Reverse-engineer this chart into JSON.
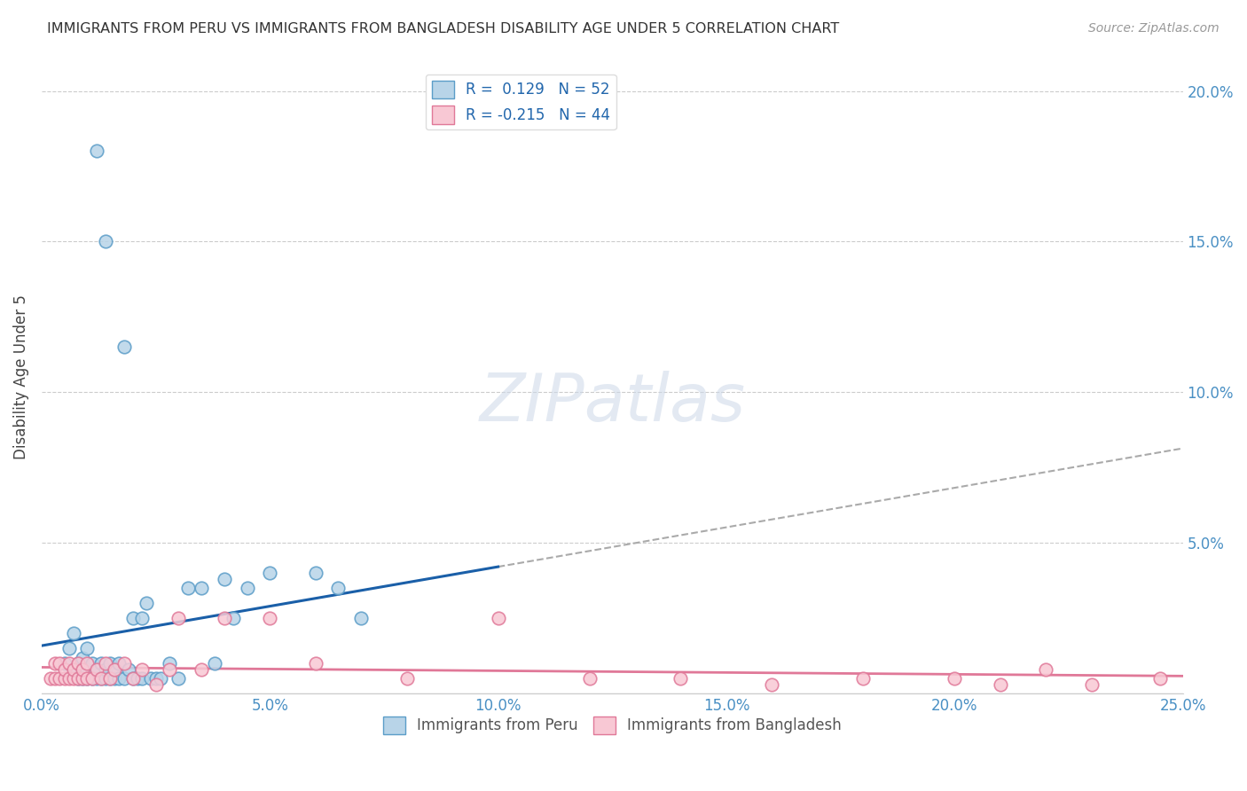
{
  "title": "IMMIGRANTS FROM PERU VS IMMIGRANTS FROM BANGLADESH DISABILITY AGE UNDER 5 CORRELATION CHART",
  "source": "Source: ZipAtlas.com",
  "ylabel": "Disability Age Under 5",
  "xlim": [
    0.0,
    0.25
  ],
  "ylim": [
    0.0,
    0.21
  ],
  "xtick_values": [
    0.0,
    0.05,
    0.1,
    0.15,
    0.2,
    0.25
  ],
  "ytick_values": [
    0.05,
    0.1,
    0.15,
    0.2
  ],
  "peru_color": "#b8d4e8",
  "peru_edge_color": "#5b9dc8",
  "bangladesh_color": "#f8c8d4",
  "bangladesh_edge_color": "#e07898",
  "peru_line_color": "#1a5fa8",
  "bangladesh_line_color": "#e07898",
  "peru_R": 0.129,
  "peru_N": 52,
  "bangladesh_R": -0.215,
  "bangladesh_N": 44,
  "legend_label_peru": "Immigrants from Peru",
  "legend_label_bangladesh": "Immigrants from Bangladesh",
  "background_color": "#ffffff",
  "grid_color": "#cccccc",
  "axis_label_color": "#4a90c4",
  "peru_scatter_x": [
    0.012,
    0.014,
    0.018,
    0.005,
    0.006,
    0.007,
    0.007,
    0.008,
    0.008,
    0.009,
    0.009,
    0.009,
    0.01,
    0.01,
    0.01,
    0.011,
    0.011,
    0.012,
    0.012,
    0.013,
    0.013,
    0.014,
    0.014,
    0.015,
    0.015,
    0.016,
    0.016,
    0.017,
    0.017,
    0.018,
    0.019,
    0.02,
    0.02,
    0.021,
    0.022,
    0.022,
    0.023,
    0.024,
    0.025,
    0.026,
    0.028,
    0.03,
    0.032,
    0.035,
    0.038,
    0.04,
    0.042,
    0.045,
    0.05,
    0.06,
    0.065,
    0.07
  ],
  "peru_scatter_y": [
    0.18,
    0.15,
    0.115,
    0.01,
    0.015,
    0.008,
    0.02,
    0.005,
    0.01,
    0.005,
    0.008,
    0.012,
    0.005,
    0.008,
    0.015,
    0.005,
    0.01,
    0.005,
    0.008,
    0.005,
    0.01,
    0.005,
    0.008,
    0.005,
    0.01,
    0.005,
    0.008,
    0.005,
    0.01,
    0.005,
    0.008,
    0.005,
    0.025,
    0.005,
    0.005,
    0.025,
    0.03,
    0.005,
    0.005,
    0.005,
    0.01,
    0.005,
    0.035,
    0.035,
    0.01,
    0.038,
    0.025,
    0.035,
    0.04,
    0.04,
    0.035,
    0.025
  ],
  "bangladesh_scatter_x": [
    0.002,
    0.003,
    0.003,
    0.004,
    0.004,
    0.005,
    0.005,
    0.006,
    0.006,
    0.007,
    0.007,
    0.008,
    0.008,
    0.009,
    0.009,
    0.01,
    0.01,
    0.011,
    0.012,
    0.013,
    0.014,
    0.015,
    0.016,
    0.018,
    0.02,
    0.022,
    0.025,
    0.028,
    0.03,
    0.035,
    0.04,
    0.05,
    0.06,
    0.08,
    0.1,
    0.12,
    0.14,
    0.16,
    0.18,
    0.2,
    0.21,
    0.22,
    0.23,
    0.245
  ],
  "bangladesh_scatter_y": [
    0.005,
    0.005,
    0.01,
    0.005,
    0.01,
    0.005,
    0.008,
    0.005,
    0.01,
    0.005,
    0.008,
    0.005,
    0.01,
    0.005,
    0.008,
    0.005,
    0.01,
    0.005,
    0.008,
    0.005,
    0.01,
    0.005,
    0.008,
    0.01,
    0.005,
    0.008,
    0.003,
    0.008,
    0.025,
    0.008,
    0.025,
    0.025,
    0.01,
    0.005,
    0.025,
    0.005,
    0.005,
    0.003,
    0.005,
    0.005,
    0.003,
    0.008,
    0.003,
    0.005
  ]
}
